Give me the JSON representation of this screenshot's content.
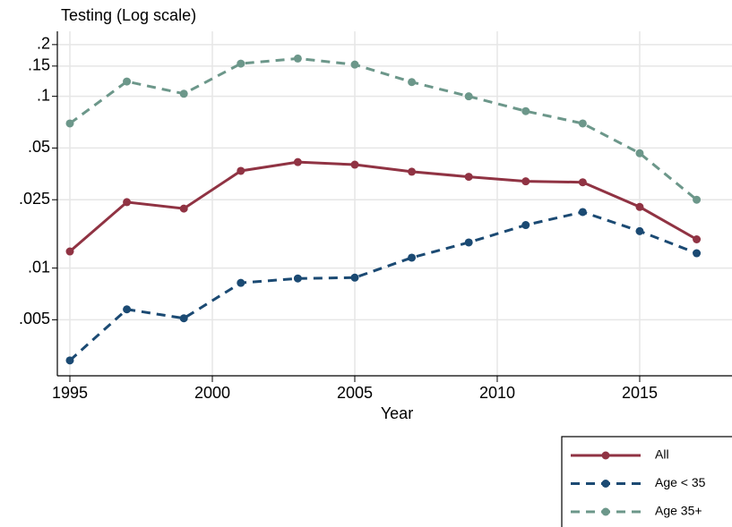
{
  "chart_data": {
    "type": "line",
    "title": "Testing (Log scale)",
    "x_label": "Year",
    "x": [
      1995,
      1997,
      1999,
      2001,
      2003,
      2005,
      2007,
      2009,
      2011,
      2013,
      2015,
      2017
    ],
    "series": [
      {
        "name": "All",
        "color": "#903343",
        "dashed": false,
        "values": [
          0.0125,
          0.0242,
          0.0222,
          0.0368,
          0.0414,
          0.04,
          0.0364,
          0.034,
          0.032,
          0.0316,
          0.0227,
          0.0147
        ]
      },
      {
        "name": "Age < 35",
        "color": "#1b4a73",
        "dashed": true,
        "values": [
          0.0029,
          0.00575,
          0.0051,
          0.0082,
          0.0087,
          0.0088,
          0.0115,
          0.0141,
          0.0178,
          0.0212,
          0.0164,
          0.0122
        ]
      },
      {
        "name": "Age 35+",
        "color": "#6c978a",
        "dashed": true,
        "values": [
          0.0695,
          0.122,
          0.1035,
          0.155,
          0.166,
          0.153,
          0.121,
          0.1,
          0.082,
          0.0695,
          0.0466,
          0.025
        ]
      }
    ],
    "xlim": [
      1994.56,
      2018.24
    ],
    "xticks": [
      1995,
      2000,
      2005,
      2010,
      2015
    ],
    "ylim": [
      0.00236,
      0.239
    ],
    "log_y": true,
    "yticks": [
      {
        "value": 0.005,
        "label": ".005"
      },
      {
        "value": 0.01,
        "label": ".01"
      },
      {
        "value": 0.025,
        "label": ".025"
      },
      {
        "value": 0.05,
        "label": ".05"
      },
      {
        "value": 0.1,
        "label": ".1"
      },
      {
        "value": 0.15,
        "label": ".15"
      },
      {
        "value": 0.2,
        "label": ".2"
      }
    ],
    "grid": true,
    "legend_position": "bottom-right"
  }
}
